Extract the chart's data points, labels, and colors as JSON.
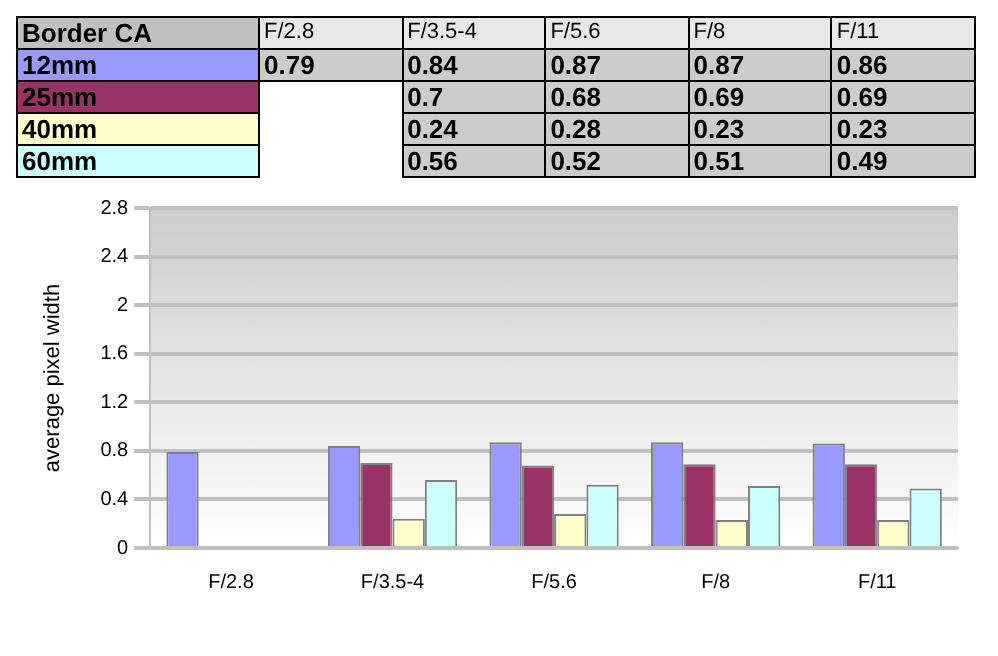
{
  "chart_data": {
    "type": "bar",
    "title": "Border CA",
    "ylabel": "average pixel width",
    "categories": [
      "F/2.8",
      "F/3.5-4",
      "F/5.6",
      "F/8",
      "F/11"
    ],
    "series": [
      {
        "name": "12mm",
        "color": "#9999ff",
        "values": [
          0.79,
          0.84,
          0.87,
          0.87,
          0.86
        ]
      },
      {
        "name": "25mm",
        "color": "#993366",
        "values": [
          null,
          0.7,
          0.68,
          0.69,
          0.69
        ]
      },
      {
        "name": "40mm",
        "color": "#ffffcc",
        "values": [
          null,
          0.24,
          0.28,
          0.23,
          0.23
        ]
      },
      {
        "name": "60mm",
        "color": "#ccffff",
        "values": [
          null,
          0.56,
          0.52,
          0.51,
          0.49
        ]
      }
    ],
    "ylim": [
      0,
      2.8
    ],
    "yticks": [
      0,
      0.4,
      0.8,
      1.2,
      1.6,
      2,
      2.4,
      2.8
    ],
    "grid": "y",
    "legend": "top left",
    "data_labels": true
  }
}
